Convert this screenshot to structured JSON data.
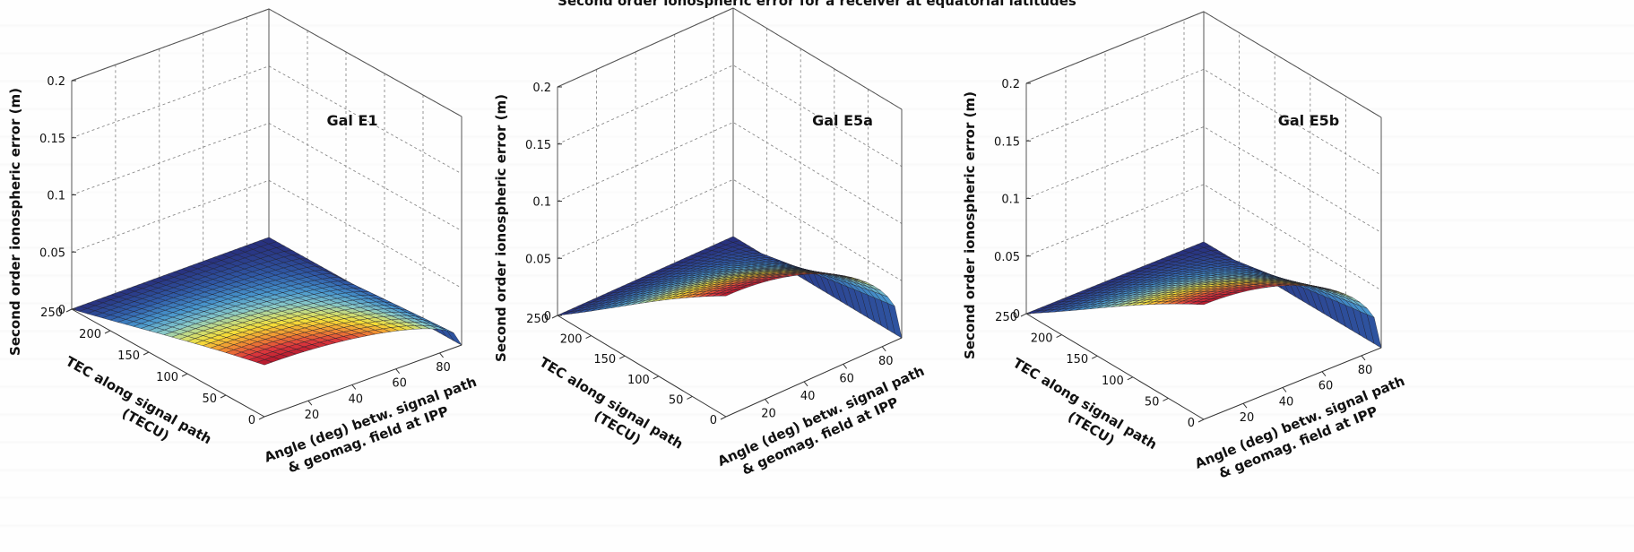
{
  "page": {
    "title": "Second order ionospheric error for a receiver at equatorial latitudes"
  },
  "chart_data": [
    {
      "type": "surface",
      "title": "Gal E1",
      "zlabel": "Second order ionospheric error (m)",
      "ylabel_lines": [
        "TEC along signal path",
        "(TECU)"
      ],
      "xlabel_lines": [
        "Angle (deg) betw. signal path",
        "& geomag. field at IPP"
      ],
      "x_ticks": [
        20,
        40,
        60,
        80
      ],
      "y_ticks": [
        0,
        50,
        100,
        150,
        200,
        250
      ],
      "z_ticks": [
        0,
        0.05,
        0.1,
        0.15,
        0.2
      ],
      "z_tick_labels": [
        "0",
        "0.05",
        "0.1",
        "0.15",
        "0.2"
      ],
      "xlim": [
        0,
        90
      ],
      "ylim": [
        0,
        250
      ],
      "zlim": [
        0,
        0.2
      ],
      "peak_error_m": 0.045,
      "grid": true
    },
    {
      "type": "surface",
      "title": "Gal E5a",
      "zlabel": "Second order ionospheric error (m)",
      "ylabel_lines": [
        "TEC along signal path",
        "(TECU)"
      ],
      "xlabel_lines": [
        "Angle (deg) betw. signal path",
        "& geomag. field at IPP"
      ],
      "x_ticks": [
        20,
        40,
        60,
        80
      ],
      "y_ticks": [
        0,
        50,
        100,
        150,
        200,
        250
      ],
      "z_ticks": [
        0,
        0.05,
        0.1,
        0.15,
        0.2
      ],
      "z_tick_labels": [
        "0",
        "0.05",
        "0.1",
        "0.15",
        "0.2"
      ],
      "xlim": [
        0,
        90
      ],
      "ylim": [
        0,
        250
      ],
      "zlim": [
        0,
        0.2
      ],
      "peak_error_m": 0.105,
      "grid": true
    },
    {
      "type": "surface",
      "title": "Gal E5b",
      "zlabel": "Second order ionospheric error (m)",
      "ylabel_lines": [
        "TEC along signal path",
        "(TECU)"
      ],
      "xlabel_lines": [
        "Angle (deg) betw. signal path",
        "& geomag. field at IPP"
      ],
      "x_ticks": [
        20,
        40,
        60,
        80
      ],
      "y_ticks": [
        0,
        50,
        100,
        150,
        200,
        250
      ],
      "z_ticks": [
        0,
        0.05,
        0.1,
        0.15,
        0.2
      ],
      "z_tick_labels": [
        "0",
        "0.05",
        "0.1",
        "0.15",
        "0.2"
      ],
      "xlim": [
        0,
        90
      ],
      "ylim": [
        0,
        250
      ],
      "zlim": [
        0,
        0.2
      ],
      "peak_error_m": 0.099,
      "grid": true
    }
  ]
}
